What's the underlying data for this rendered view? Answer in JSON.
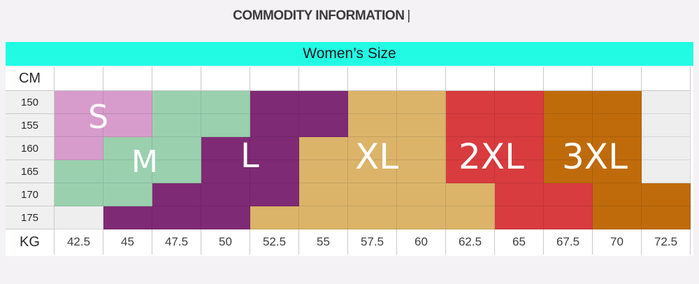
{
  "header": {
    "title": "COMMODITY INFORMATION",
    "separator": "|"
  },
  "banner": {
    "label": "Women’s Size"
  },
  "table": {
    "cm_label": "CM",
    "kg_label": "KG",
    "heights": [
      "150",
      "155",
      "160",
      "165",
      "170",
      "175"
    ],
    "weights": [
      "42.5",
      "45",
      "47.5",
      "50",
      "52.5",
      "55",
      "57.5",
      "60",
      "62.5",
      "65",
      "67.5",
      "70",
      "72.5"
    ],
    "size_labels": [
      "S",
      "M",
      "L",
      "XL",
      "2XL",
      "3XL"
    ],
    "size_colors": {
      "S": "#d79ccb",
      "M": "#9ad0ae",
      "L": "#7f2a75",
      "XL": "#dbb46a",
      "2XL": "#d83c3f",
      "3XL": "#bf6b0c",
      "empty": "#eeeeee"
    },
    "grid": [
      [
        "S",
        "S",
        "M",
        "M",
        "L",
        "L",
        "XL",
        "XL",
        "2XL",
        "2XL",
        "3XL",
        "3XL",
        ""
      ],
      [
        "S",
        "S",
        "M",
        "M",
        "L",
        "L",
        "XL",
        "XL",
        "2XL",
        "2XL",
        "3XL",
        "3XL",
        ""
      ],
      [
        "S",
        "M",
        "M",
        "L",
        "L",
        "XL",
        "XL",
        "XL",
        "2XL",
        "2XL",
        "3XL",
        "3XL",
        ""
      ],
      [
        "M",
        "M",
        "M",
        "L",
        "L",
        "XL",
        "XL",
        "XL",
        "2XL",
        "2XL",
        "3XL",
        "3XL",
        ""
      ],
      [
        "M",
        "M",
        "L",
        "L",
        "L",
        "XL",
        "XL",
        "XL",
        "XL",
        "2XL",
        "2XL",
        "3XL",
        "3XL"
      ],
      [
        "",
        "L",
        "L",
        "L",
        "XL",
        "XL",
        "XL",
        "XL",
        "XL",
        "2XL",
        "2XL",
        "3XL",
        "3XL"
      ]
    ]
  }
}
